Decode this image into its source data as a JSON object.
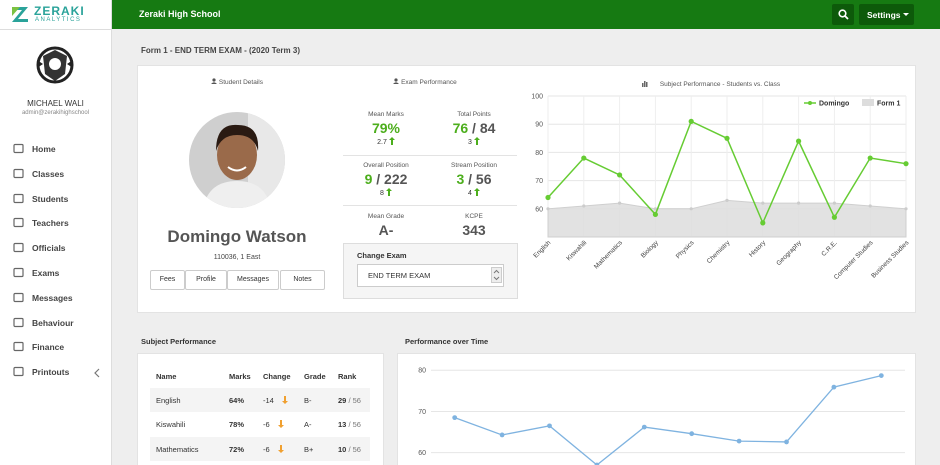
{
  "logo": {
    "name": "ZERAKI",
    "tagline": "ANALYTICS"
  },
  "topbar": {
    "school": "Zeraki High School",
    "settings": "Settings"
  },
  "user": {
    "name": "MICHAEL WALI",
    "email": "admin@zerakihighschool"
  },
  "nav": [
    "Home",
    "Classes",
    "Students",
    "Teachers",
    "Officials",
    "Exams",
    "Messages",
    "Behaviour",
    "Finance",
    "Printouts"
  ],
  "page_title": "Form 1 - END TERM EXAM - (2020 Term 3)",
  "student": {
    "heading": "Student Details",
    "name": "Domingo Watson",
    "info": "110036, 1 East",
    "buttons": [
      "Fees",
      "Profile",
      "Messages",
      "Notes"
    ]
  },
  "exam": {
    "heading": "Exam Performance",
    "stats": [
      {
        "label": "Mean Marks",
        "value": "79%",
        "change": "2.7"
      },
      {
        "label": "Total Points",
        "value": "76",
        "out_of": "/ 84",
        "change": "3"
      },
      {
        "label": "Overall Position",
        "value": "9",
        "out_of": "/ 222",
        "change": "8"
      },
      {
        "label": "Stream Position",
        "value": "3",
        "out_of": "/ 56",
        "change": "4"
      },
      {
        "label": "Mean Grade",
        "value": "A-"
      },
      {
        "label": "KCPE",
        "value": "343"
      }
    ],
    "change_exam": "Change Exam",
    "selected": "END TERM EXAM"
  },
  "table": {
    "heading": "Subject Performance",
    "columns": [
      "Name",
      "Marks",
      "Change",
      "Grade",
      "Rank"
    ],
    "rows": [
      [
        "English",
        "64%",
        "-14",
        "B-",
        "29",
        "/ 56"
      ],
      [
        "Kiswahili",
        "78%",
        "-6",
        "A-",
        "13",
        "/ 56"
      ],
      [
        "Mathematics",
        "72%",
        "-6",
        "B+",
        "10",
        "/ 56"
      ]
    ]
  },
  "chart_data": [
    {
      "type": "line",
      "title": "Subject Performance - Students vs. Class",
      "categories": [
        "English",
        "Kiswahili",
        "Mathematics",
        "Biology",
        "Physics",
        "Chemistry",
        "History",
        "Geography",
        "C.R.E.",
        "Computer Studies",
        "Business Studies"
      ],
      "series": [
        {
          "name": "Domingo",
          "color": "#66cc33",
          "values": [
            64,
            78,
            72,
            58,
            91,
            85,
            55,
            84,
            57,
            78,
            76
          ]
        },
        {
          "name": "Form 1",
          "color": "#dddddd",
          "kind": "area",
          "values": [
            60,
            61,
            62,
            60,
            60,
            63,
            62,
            62,
            62,
            61,
            60
          ]
        }
      ],
      "ylim": [
        50,
        100
      ],
      "yticks": [
        60,
        70,
        80,
        90,
        100
      ],
      "grid": true,
      "legend": "top-right"
    },
    {
      "type": "line",
      "title": "Performance over Time",
      "categories": [
        null,
        null,
        null,
        null,
        null,
        null,
        null,
        null,
        null,
        null
      ],
      "values": [
        68.5,
        64.3,
        66.5,
        57,
        66.2,
        64.6,
        62.8,
        62.6,
        75.9,
        78.7
      ],
      "color": "#7fb3e0",
      "ylim": [
        57,
        82
      ],
      "yticks": [
        60,
        70,
        80
      ],
      "grid": true
    }
  ]
}
